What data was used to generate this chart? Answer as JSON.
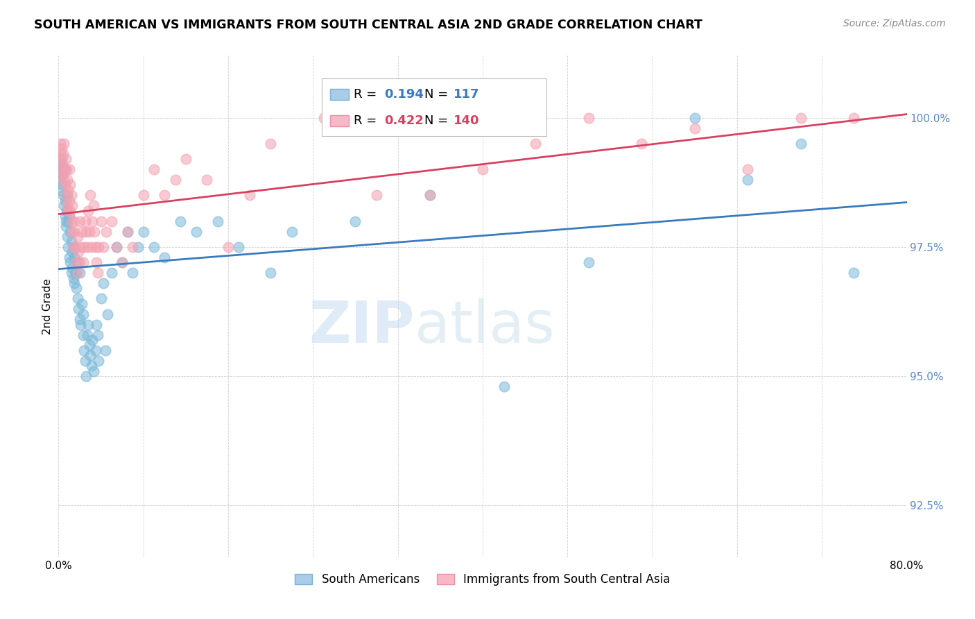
{
  "title": "SOUTH AMERICAN VS IMMIGRANTS FROM SOUTH CENTRAL ASIA 2ND GRADE CORRELATION CHART",
  "source": "Source: ZipAtlas.com",
  "ylabel": "2nd Grade",
  "yticks": [
    92.5,
    95.0,
    97.5,
    100.0
  ],
  "ytick_labels": [
    "92.5%",
    "95.0%",
    "97.5%",
    "100.0%"
  ],
  "xmin": 0.0,
  "xmax": 80.0,
  "ymin": 91.5,
  "ymax": 101.2,
  "blue_R": 0.194,
  "blue_N": 117,
  "red_R": 0.422,
  "red_N": 140,
  "blue_color": "#7ab8d9",
  "red_color": "#f4a0b0",
  "blue_line_color": "#3a7abf",
  "red_line_color": "#d94060",
  "title_fontsize": 12.5,
  "source_fontsize": 10,
  "legend_fontsize": 13,
  "axis_label_fontsize": 11,
  "tick_label_color": "#5588cc",
  "watermark_zip": "ZIP",
  "watermark_atlas": "atlas",
  "blue_scatter_x": [
    0.1,
    0.15,
    0.2,
    0.25,
    0.3,
    0.35,
    0.4,
    0.45,
    0.5,
    0.5,
    0.6,
    0.6,
    0.7,
    0.7,
    0.75,
    0.8,
    0.8,
    0.9,
    0.9,
    1.0,
    1.0,
    1.1,
    1.1,
    1.2,
    1.2,
    1.3,
    1.3,
    1.4,
    1.4,
    1.5,
    1.5,
    1.6,
    1.7,
    1.8,
    1.8,
    1.9,
    2.0,
    2.0,
    2.1,
    2.2,
    2.3,
    2.3,
    2.4,
    2.5,
    2.6,
    2.7,
    2.8,
    2.9,
    3.0,
    3.1,
    3.2,
    3.3,
    3.5,
    3.6,
    3.7,
    3.8,
    4.0,
    4.2,
    4.4,
    4.6,
    5.0,
    5.5,
    6.0,
    6.5,
    7.0,
    7.5,
    8.0,
    9.0,
    10.0,
    11.5,
    13.0,
    15.0,
    17.0,
    20.0,
    22.0,
    28.0,
    35.0,
    42.0,
    50.0,
    60.0,
    65.0,
    70.0,
    75.0
  ],
  "blue_scatter_y": [
    98.6,
    98.8,
    99.0,
    99.1,
    99.2,
    98.9,
    98.7,
    98.5,
    98.3,
    99.0,
    98.4,
    98.1,
    98.0,
    97.9,
    98.2,
    97.7,
    98.5,
    97.5,
    98.0,
    97.3,
    98.1,
    97.2,
    97.8,
    97.0,
    97.6,
    97.4,
    97.1,
    97.5,
    96.9,
    97.3,
    96.8,
    97.0,
    96.7,
    96.5,
    97.2,
    96.3,
    96.1,
    97.0,
    96.0,
    96.4,
    96.2,
    95.8,
    95.5,
    95.3,
    95.0,
    95.8,
    96.0,
    95.6,
    95.4,
    95.2,
    95.7,
    95.1,
    95.5,
    96.0,
    95.8,
    95.3,
    96.5,
    96.8,
    95.5,
    96.2,
    97.0,
    97.5,
    97.2,
    97.8,
    97.0,
    97.5,
    97.8,
    97.5,
    97.3,
    98.0,
    97.8,
    98.0,
    97.5,
    97.0,
    97.8,
    98.0,
    98.5,
    94.8,
    97.2,
    100.0,
    98.8,
    99.5,
    97.0
  ],
  "red_scatter_x": [
    0.1,
    0.15,
    0.2,
    0.25,
    0.3,
    0.35,
    0.4,
    0.45,
    0.5,
    0.5,
    0.6,
    0.6,
    0.7,
    0.7,
    0.75,
    0.8,
    0.8,
    0.9,
    0.9,
    1.0,
    1.0,
    1.1,
    1.1,
    1.2,
    1.2,
    1.3,
    1.3,
    1.4,
    1.5,
    1.5,
    1.6,
    1.7,
    1.8,
    1.8,
    1.9,
    2.0,
    2.0,
    2.1,
    2.2,
    2.3,
    2.4,
    2.5,
    2.6,
    2.7,
    2.8,
    2.9,
    3.0,
    3.1,
    3.2,
    3.3,
    3.4,
    3.5,
    3.6,
    3.7,
    3.8,
    4.0,
    4.2,
    4.5,
    5.0,
    5.5,
    6.0,
    6.5,
    7.0,
    8.0,
    9.0,
    10.0,
    11.0,
    12.0,
    14.0,
    16.0,
    18.0,
    20.0,
    25.0,
    30.0,
    35.0,
    40.0,
    45.0,
    50.0,
    55.0,
    60.0,
    65.0,
    70.0,
    75.0
  ],
  "red_scatter_y": [
    99.2,
    99.5,
    99.3,
    99.0,
    99.4,
    99.1,
    98.9,
    99.3,
    98.8,
    99.5,
    99.0,
    98.7,
    99.2,
    98.5,
    99.0,
    98.8,
    98.3,
    98.6,
    98.2,
    98.4,
    99.0,
    98.2,
    98.7,
    98.0,
    98.5,
    97.8,
    98.3,
    97.5,
    97.8,
    98.0,
    97.5,
    97.2,
    97.7,
    97.0,
    97.4,
    97.2,
    98.0,
    97.5,
    97.8,
    97.2,
    97.5,
    98.0,
    97.8,
    97.5,
    98.2,
    97.8,
    98.5,
    97.5,
    98.0,
    98.3,
    97.8,
    97.5,
    97.2,
    97.0,
    97.5,
    98.0,
    97.5,
    97.8,
    98.0,
    97.5,
    97.2,
    97.8,
    97.5,
    98.5,
    99.0,
    98.5,
    98.8,
    99.2,
    98.8,
    97.5,
    98.5,
    99.5,
    100.0,
    98.5,
    98.5,
    99.0,
    99.5,
    100.0,
    99.5,
    99.8,
    99.0,
    100.0,
    100.0
  ]
}
